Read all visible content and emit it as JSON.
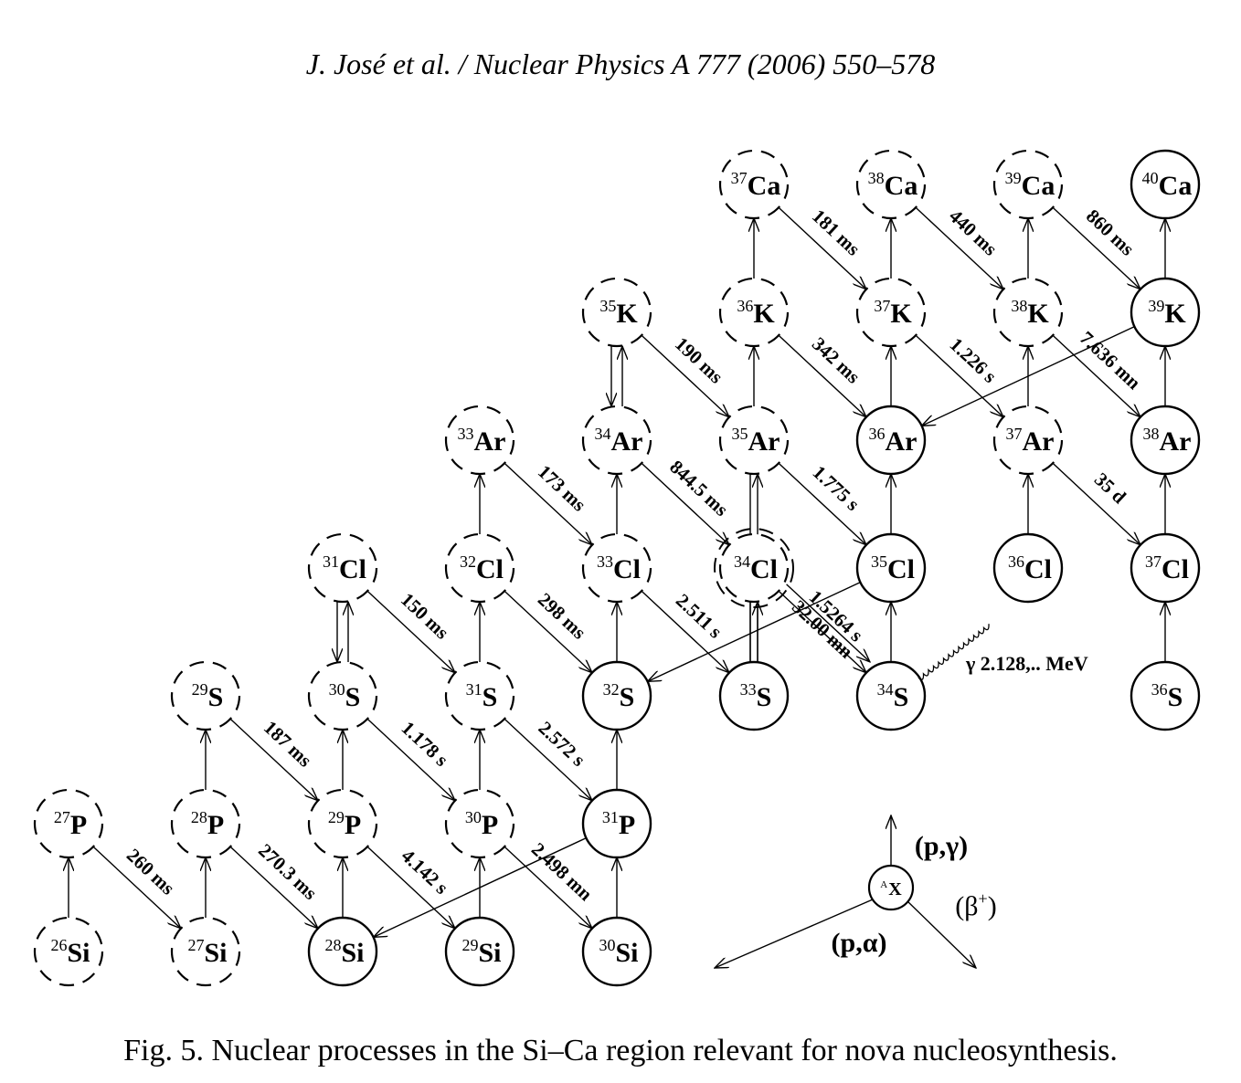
{
  "header": "J. José et al. / Nuclear Physics A 777 (2006) 550–578",
  "caption": "Fig. 5. Nuclear processes in the Si–Ca region relevant for nova nucleosynthesis.",
  "nuclides": [
    {
      "id": "Si26",
      "mass": "26",
      "sym": "Si",
      "z": 14,
      "n": 12,
      "stable": false
    },
    {
      "id": "Si27",
      "mass": "27",
      "sym": "Si",
      "z": 14,
      "n": 13,
      "stable": false
    },
    {
      "id": "Si28",
      "mass": "28",
      "sym": "Si",
      "z": 14,
      "n": 14,
      "stable": true
    },
    {
      "id": "Si29",
      "mass": "29",
      "sym": "Si",
      "z": 14,
      "n": 15,
      "stable": true
    },
    {
      "id": "Si30",
      "mass": "30",
      "sym": "Si",
      "z": 14,
      "n": 16,
      "stable": true
    },
    {
      "id": "P27",
      "mass": "27",
      "sym": "P",
      "z": 15,
      "n": 12,
      "stable": false
    },
    {
      "id": "P28",
      "mass": "28",
      "sym": "P",
      "z": 15,
      "n": 13,
      "stable": false
    },
    {
      "id": "P29",
      "mass": "29",
      "sym": "P",
      "z": 15,
      "n": 14,
      "stable": false
    },
    {
      "id": "P30",
      "mass": "30",
      "sym": "P",
      "z": 15,
      "n": 15,
      "stable": false
    },
    {
      "id": "P31",
      "mass": "31",
      "sym": "P",
      "z": 15,
      "n": 16,
      "stable": true
    },
    {
      "id": "S29",
      "mass": "29",
      "sym": "S",
      "z": 16,
      "n": 13,
      "stable": false
    },
    {
      "id": "S30",
      "mass": "30",
      "sym": "S",
      "z": 16,
      "n": 14,
      "stable": false
    },
    {
      "id": "S31",
      "mass": "31",
      "sym": "S",
      "z": 16,
      "n": 15,
      "stable": false
    },
    {
      "id": "S32",
      "mass": "32",
      "sym": "S",
      "z": 16,
      "n": 16,
      "stable": true
    },
    {
      "id": "S33",
      "mass": "33",
      "sym": "S",
      "z": 16,
      "n": 17,
      "stable": true
    },
    {
      "id": "S34",
      "mass": "34",
      "sym": "S",
      "z": 16,
      "n": 18,
      "stable": true
    },
    {
      "id": "S36",
      "mass": "36",
      "sym": "S",
      "z": 16,
      "n": 20,
      "stable": true
    },
    {
      "id": "Cl31",
      "mass": "31",
      "sym": "Cl",
      "z": 17,
      "n": 14,
      "stable": false
    },
    {
      "id": "Cl32",
      "mass": "32",
      "sym": "Cl",
      "z": 17,
      "n": 15,
      "stable": false
    },
    {
      "id": "Cl33",
      "mass": "33",
      "sym": "Cl",
      "z": 17,
      "n": 16,
      "stable": false
    },
    {
      "id": "Cl34",
      "mass": "34",
      "sym": "Cl",
      "z": 17,
      "n": 17,
      "stable": false,
      "double": true
    },
    {
      "id": "Cl35",
      "mass": "35",
      "sym": "Cl",
      "z": 17,
      "n": 18,
      "stable": true
    },
    {
      "id": "Cl36",
      "mass": "36",
      "sym": "Cl",
      "z": 17,
      "n": 19,
      "stable": true
    },
    {
      "id": "Cl37",
      "mass": "37",
      "sym": "Cl",
      "z": 17,
      "n": 20,
      "stable": true
    },
    {
      "id": "Ar33",
      "mass": "33",
      "sym": "Ar",
      "z": 18,
      "n": 15,
      "stable": false
    },
    {
      "id": "Ar34",
      "mass": "34",
      "sym": "Ar",
      "z": 18,
      "n": 16,
      "stable": false
    },
    {
      "id": "Ar35",
      "mass": "35",
      "sym": "Ar",
      "z": 18,
      "n": 17,
      "stable": false
    },
    {
      "id": "Ar36",
      "mass": "36",
      "sym": "Ar",
      "z": 18,
      "n": 18,
      "stable": true
    },
    {
      "id": "Ar37",
      "mass": "37",
      "sym": "Ar",
      "z": 18,
      "n": 19,
      "stable": false
    },
    {
      "id": "Ar38",
      "mass": "38",
      "sym": "Ar",
      "z": 18,
      "n": 20,
      "stable": true
    },
    {
      "id": "K35",
      "mass": "35",
      "sym": "K",
      "z": 19,
      "n": 16,
      "stable": false
    },
    {
      "id": "K36",
      "mass": "36",
      "sym": "K",
      "z": 19,
      "n": 17,
      "stable": false
    },
    {
      "id": "K37",
      "mass": "37",
      "sym": "K",
      "z": 19,
      "n": 18,
      "stable": false
    },
    {
      "id": "K38",
      "mass": "38",
      "sym": "K",
      "z": 19,
      "n": 19,
      "stable": false
    },
    {
      "id": "K39",
      "mass": "39",
      "sym": "K",
      "z": 19,
      "n": 20,
      "stable": true
    },
    {
      "id": "Ca37",
      "mass": "37",
      "sym": "Ca",
      "z": 20,
      "n": 17,
      "stable": false
    },
    {
      "id": "Ca38",
      "mass": "38",
      "sym": "Ca",
      "z": 20,
      "n": 18,
      "stable": false
    },
    {
      "id": "Ca39",
      "mass": "39",
      "sym": "Ca",
      "z": 20,
      "n": 19,
      "stable": false
    },
    {
      "id": "Ca40",
      "mass": "40",
      "sym": "Ca",
      "z": 20,
      "n": 20,
      "stable": true
    }
  ],
  "pg": [
    [
      "Si26",
      "P27"
    ],
    [
      "Si27",
      "P28"
    ],
    [
      "Si28",
      "P29"
    ],
    [
      "Si29",
      "P30"
    ],
    [
      "Si30",
      "P31"
    ],
    [
      "P28",
      "S29"
    ],
    [
      "P29",
      "S30"
    ],
    [
      "P30",
      "S31"
    ],
    [
      "P31",
      "S32"
    ],
    [
      "S31",
      "Cl32"
    ],
    [
      "S32",
      "Cl33"
    ],
    [
      "S34",
      "Cl35"
    ],
    [
      "S36",
      "Cl37"
    ],
    [
      "Cl32",
      "Ar33"
    ],
    [
      "Cl33",
      "Ar34"
    ],
    [
      "Cl35",
      "Ar36"
    ],
    [
      "Cl36",
      "Ar37"
    ],
    [
      "Cl37",
      "Ar38"
    ],
    [
      "Ar35",
      "K36"
    ],
    [
      "Ar36",
      "K37"
    ],
    [
      "Ar37",
      "K38"
    ],
    [
      "Ar38",
      "K39"
    ],
    [
      "K36",
      "Ca37"
    ],
    [
      "K37",
      "Ca38"
    ],
    [
      "K38",
      "Ca39"
    ],
    [
      "K39",
      "Ca40"
    ]
  ],
  "pg_double": [
    [
      "S33",
      "Ar35"
    ],
    [
      "S33",
      "Cl34"
    ]
  ],
  "down_arrows": [
    [
      "Cl31",
      "S30"
    ],
    [
      "K35",
      "Ar34"
    ]
  ],
  "beta": [
    {
      "from": "P27",
      "to": "Si27",
      "label": "260 ms"
    },
    {
      "from": "P28",
      "to": "Si28",
      "label": "270.3 ms"
    },
    {
      "from": "P29",
      "to": "Si29",
      "label": "4.142 s"
    },
    {
      "from": "P30",
      "to": "Si30",
      "label": "2.498 mn"
    },
    {
      "from": "S29",
      "to": "P29",
      "label": "187 ms"
    },
    {
      "from": "S30",
      "to": "P30",
      "label": "1.178 s"
    },
    {
      "from": "S31",
      "to": "P31",
      "label": "2.572 s"
    },
    {
      "from": "Cl31",
      "to": "S31",
      "label": "150 ms"
    },
    {
      "from": "Cl32",
      "to": "S32",
      "label": "298 ms"
    },
    {
      "from": "Cl33",
      "to": "S33",
      "label": "2.511 s"
    },
    {
      "from": "Cl34",
      "to": "S34",
      "label": "1.5264 s"
    },
    {
      "from": "Cl34",
      "to": "S34",
      "label": "32.00 mn",
      "offset": true
    },
    {
      "from": "Ar33",
      "to": "Cl33",
      "label": "173 ms"
    },
    {
      "from": "Ar34",
      "to": "Cl34",
      "label": "844.5 ms"
    },
    {
      "from": "Ar35",
      "to": "Cl35",
      "label": "1.775 s"
    },
    {
      "from": "Ar37",
      "to": "Cl37",
      "label": "35 d"
    },
    {
      "from": "K35",
      "to": "Ar35",
      "label": "190 ms"
    },
    {
      "from": "K36",
      "to": "Ar36",
      "label": "342 ms"
    },
    {
      "from": "K37",
      "to": "Ar37",
      "label": "1.226 s"
    },
    {
      "from": "K38",
      "to": "Ar38",
      "label": "7.636 mn"
    },
    {
      "from": "Ca37",
      "to": "K37",
      "label": "181 ms"
    },
    {
      "from": "Ca38",
      "to": "K38",
      "label": "440 ms"
    },
    {
      "from": "Ca39",
      "to": "K39",
      "label": "860 ms"
    }
  ],
  "pa": [
    [
      "P31",
      "Si28"
    ],
    [
      "Cl35",
      "S32"
    ],
    [
      "K39",
      "Ar36"
    ]
  ],
  "gamma_label": "γ 2.128,.. MeV",
  "legend": {
    "center": "X",
    "center_sup": "A",
    "pg": "(p,γ)",
    "beta": "(β+)",
    "beta_base": "(β",
    "beta_sup": "+",
    "beta_close": ")",
    "pa": "(p,α)"
  }
}
